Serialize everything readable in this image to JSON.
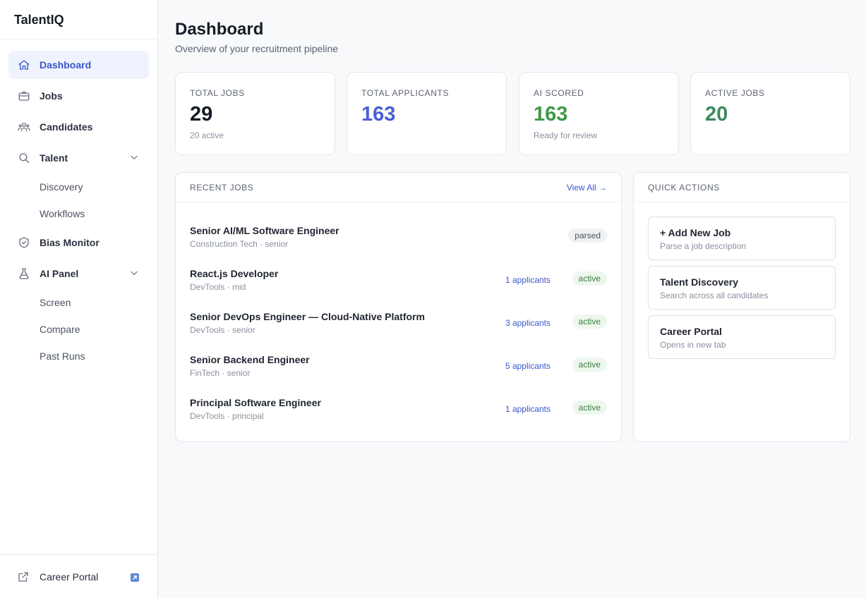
{
  "app": {
    "name": "TalentIQ"
  },
  "sidebar": {
    "items": [
      {
        "label": "Dashboard"
      },
      {
        "label": "Jobs"
      },
      {
        "label": "Candidates"
      },
      {
        "label": "Talent"
      },
      {
        "label": "Discovery"
      },
      {
        "label": "Workflows"
      },
      {
        "label": "Bias Monitor"
      },
      {
        "label": "AI Panel"
      },
      {
        "label": "Screen"
      },
      {
        "label": "Compare"
      },
      {
        "label": "Past Runs"
      }
    ],
    "footer": {
      "label": "Career Portal"
    }
  },
  "header": {
    "title": "Dashboard",
    "subtitle": "Overview of your recruitment pipeline"
  },
  "stats": [
    {
      "label": "TOTAL JOBS",
      "value": "29",
      "note": "20 active",
      "color": "#161b26"
    },
    {
      "label": "TOTAL APPLICANTS",
      "value": "163",
      "note": "",
      "color": "#4a5fd6"
    },
    {
      "label": "AI SCORED",
      "value": "163",
      "note": "Ready for review",
      "color": "#3f9a45"
    },
    {
      "label": "ACTIVE JOBS",
      "value": "20",
      "note": "",
      "color": "#3b8a5a"
    }
  ],
  "recent_jobs": {
    "title": "RECENT JOBS",
    "view_all": "View All →",
    "rows": [
      {
        "title": "Senior AI/ML Software Engineer",
        "meta": "Construction Tech · senior",
        "applicants": "",
        "status": "parsed"
      },
      {
        "title": "React.js Developer",
        "meta": "DevTools · mid",
        "applicants": "1 applicants",
        "status": "active"
      },
      {
        "title": "Senior DevOps Engineer — Cloud-Native Platform",
        "meta": "DevTools · senior",
        "applicants": "3 applicants",
        "status": "active"
      },
      {
        "title": "Senior Backend Engineer",
        "meta": "FinTech · senior",
        "applicants": "5 applicants",
        "status": "active"
      },
      {
        "title": "Principal Software Engineer",
        "meta": "DevTools · principal",
        "applicants": "1 applicants",
        "status": "active"
      }
    ]
  },
  "quick_actions": {
    "title": "QUICK ACTIONS",
    "items": [
      {
        "title": "+ Add New Job",
        "sub": "Parse a job description"
      },
      {
        "title": "Talent Discovery",
        "sub": "Search across all candidates"
      },
      {
        "title": "Career Portal",
        "sub": "Opens in new tab"
      }
    ]
  },
  "colors": {
    "accent": "#3a57c9",
    "active_bg": "#eef3fd",
    "success": "#3b7d3e"
  }
}
